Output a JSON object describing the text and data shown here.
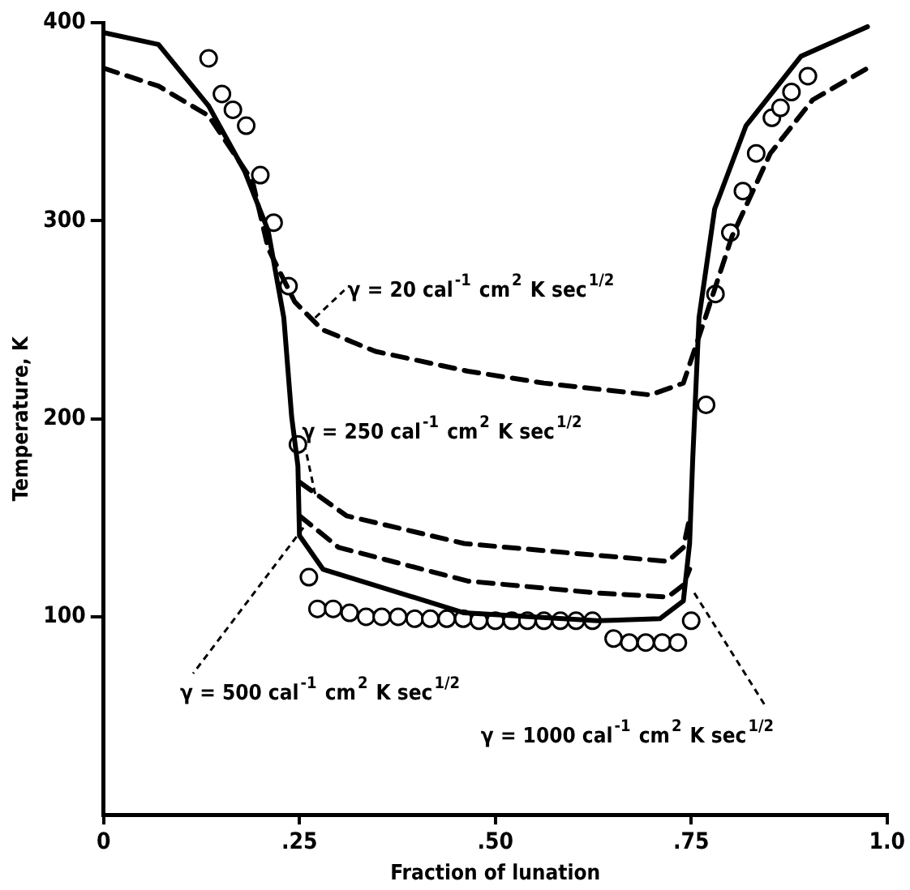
{
  "chart_data": {
    "type": "line",
    "xlabel": "Fraction of lunation",
    "ylabel": "Temperature, K",
    "xlim": [
      0,
      1
    ],
    "xticks": [
      0,
      {
        "value": 0.25,
        "label": ".25"
      },
      {
        "value": 0.5,
        "label": ".50"
      },
      {
        "value": 0.75,
        "label": ".75"
      },
      {
        "value": 1,
        "label": "1.0"
      }
    ],
    "ylim": [
      0,
      400
    ],
    "yticks": [
      100,
      200,
      300,
      400
    ],
    "grid": false,
    "legend": false,
    "series": [
      {
        "color": "#000000",
        "line_style": "dashed",
        "marker": "none",
        "x": [
          0,
          0.07,
          0.134,
          0.19,
          0.21,
          0.244,
          0.279,
          0.347,
          0.465,
          0.562,
          0.698,
          0.74,
          0.768,
          0.802,
          0.851,
          0.905,
          0.975
        ],
        "values": [
          377,
          368,
          353,
          320,
          286,
          259,
          245,
          234,
          224,
          218,
          212,
          218,
          251,
          292,
          334,
          361,
          377
        ]
      },
      {
        "color": "#000000",
        "line_style": "dashed",
        "marker": "none",
        "x": [
          0.25,
          0.31,
          0.46,
          0.63,
          0.72,
          0.74,
          0.748
        ],
        "values": [
          168,
          151,
          137,
          131,
          128,
          135,
          150
        ]
      },
      {
        "color": "#000000",
        "line_style": "dashed",
        "marker": "none",
        "x": [
          0.25,
          0.3,
          0.465,
          0.63,
          0.72,
          0.74,
          0.748
        ],
        "values": [
          151,
          135,
          118,
          112,
          110,
          116,
          124
        ]
      },
      {
        "color": "#000000",
        "line_style": "solid",
        "marker": "none",
        "x": [
          0,
          0.07,
          0.134,
          0.18,
          0.21,
          0.23,
          0.24,
          0.248,
          0.25,
          0.28,
          0.46,
          0.63,
          0.71,
          0.74,
          0.748,
          0.752,
          0.76,
          0.78,
          0.82,
          0.89,
          0.975
        ],
        "values": [
          395,
          389,
          358,
          325,
          295,
          251,
          201,
          176,
          141,
          124,
          102,
          98,
          99,
          108,
          137,
          180,
          251,
          306,
          348,
          383,
          398
        ]
      },
      {
        "type": "scatter",
        "color": "#000000",
        "marker": "circle",
        "x": [
          0.134,
          0.151,
          0.165,
          0.182,
          0.2,
          0.217,
          0.236,
          0.248,
          0.262,
          0.273,
          0.293,
          0.314,
          0.335,
          0.355,
          0.376,
          0.397,
          0.417,
          0.438,
          0.459,
          0.479,
          0.5,
          0.521,
          0.541,
          0.562,
          0.583,
          0.603,
          0.624,
          0.651,
          0.671,
          0.692,
          0.713,
          0.733,
          0.75,
          0.769,
          0.781,
          0.8,
          0.816,
          0.833,
          0.853,
          0.864,
          0.878,
          0.899
        ],
        "values": [
          382,
          364,
          356,
          348,
          323,
          299,
          267,
          187,
          120,
          104,
          104,
          102,
          100,
          100,
          100,
          99,
          99,
          99,
          99,
          98,
          98,
          98,
          98,
          98,
          98,
          98,
          98,
          89,
          87,
          87,
          87,
          87,
          98,
          207,
          263,
          294,
          315,
          334,
          352,
          357,
          365,
          373
        ]
      }
    ],
    "annotations": [
      {
        "text": "γ = 20 cal$^{-1}$ cm$^{2}$ K sec$^{1/2}$",
        "x": 0.27,
        "y": 251
      },
      {
        "text": "γ = 250 cal$^{-1}$ cm$^{2}$ K sec$^{1/2}$",
        "x": 0.27,
        "y": 162
      },
      {
        "text": "γ = 500 cal$^{-1}$ cm$^{2}$ K sec$^{1/2}$",
        "x": 0.255,
        "y": 145
      },
      {
        "text": "γ = 1000 cal$^{-1}$ cm$^{2}$ K sec$^{1/2}$",
        "x": 0.754,
        "y": 112
      }
    ]
  }
}
